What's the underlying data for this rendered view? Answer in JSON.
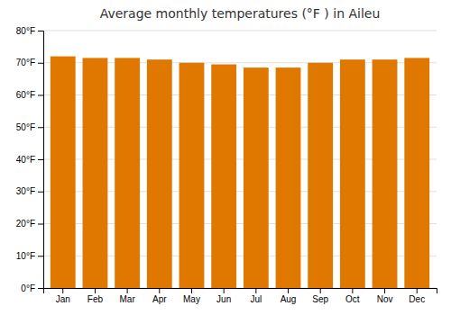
{
  "chart_data": {
    "type": "bar",
    "title": "Average monthly temperatures (°F ) in Aileu",
    "categories": [
      "Jan",
      "Feb",
      "Mar",
      "Apr",
      "May",
      "Jun",
      "Jul",
      "Aug",
      "Sep",
      "Oct",
      "Nov",
      "Dec"
    ],
    "values": [
      72.0,
      71.5,
      71.5,
      71.0,
      70.0,
      69.5,
      68.5,
      68.5,
      70.0,
      71.0,
      71.0,
      71.5
    ],
    "color": "#E07800",
    "ylim": [
      0,
      80
    ],
    "yticks": [
      {
        "value": 0,
        "label": "0°F"
      },
      {
        "value": 10,
        "label": "10°F"
      },
      {
        "value": 20,
        "label": "20°F"
      },
      {
        "value": 30,
        "label": "30°F"
      },
      {
        "value": 40,
        "label": "40°F"
      },
      {
        "value": 50,
        "label": "50°F"
      },
      {
        "value": 60,
        "label": "60°F"
      },
      {
        "value": 70,
        "label": "70°F"
      },
      {
        "value": 80,
        "label": "80°F"
      }
    ],
    "grid": true
  }
}
